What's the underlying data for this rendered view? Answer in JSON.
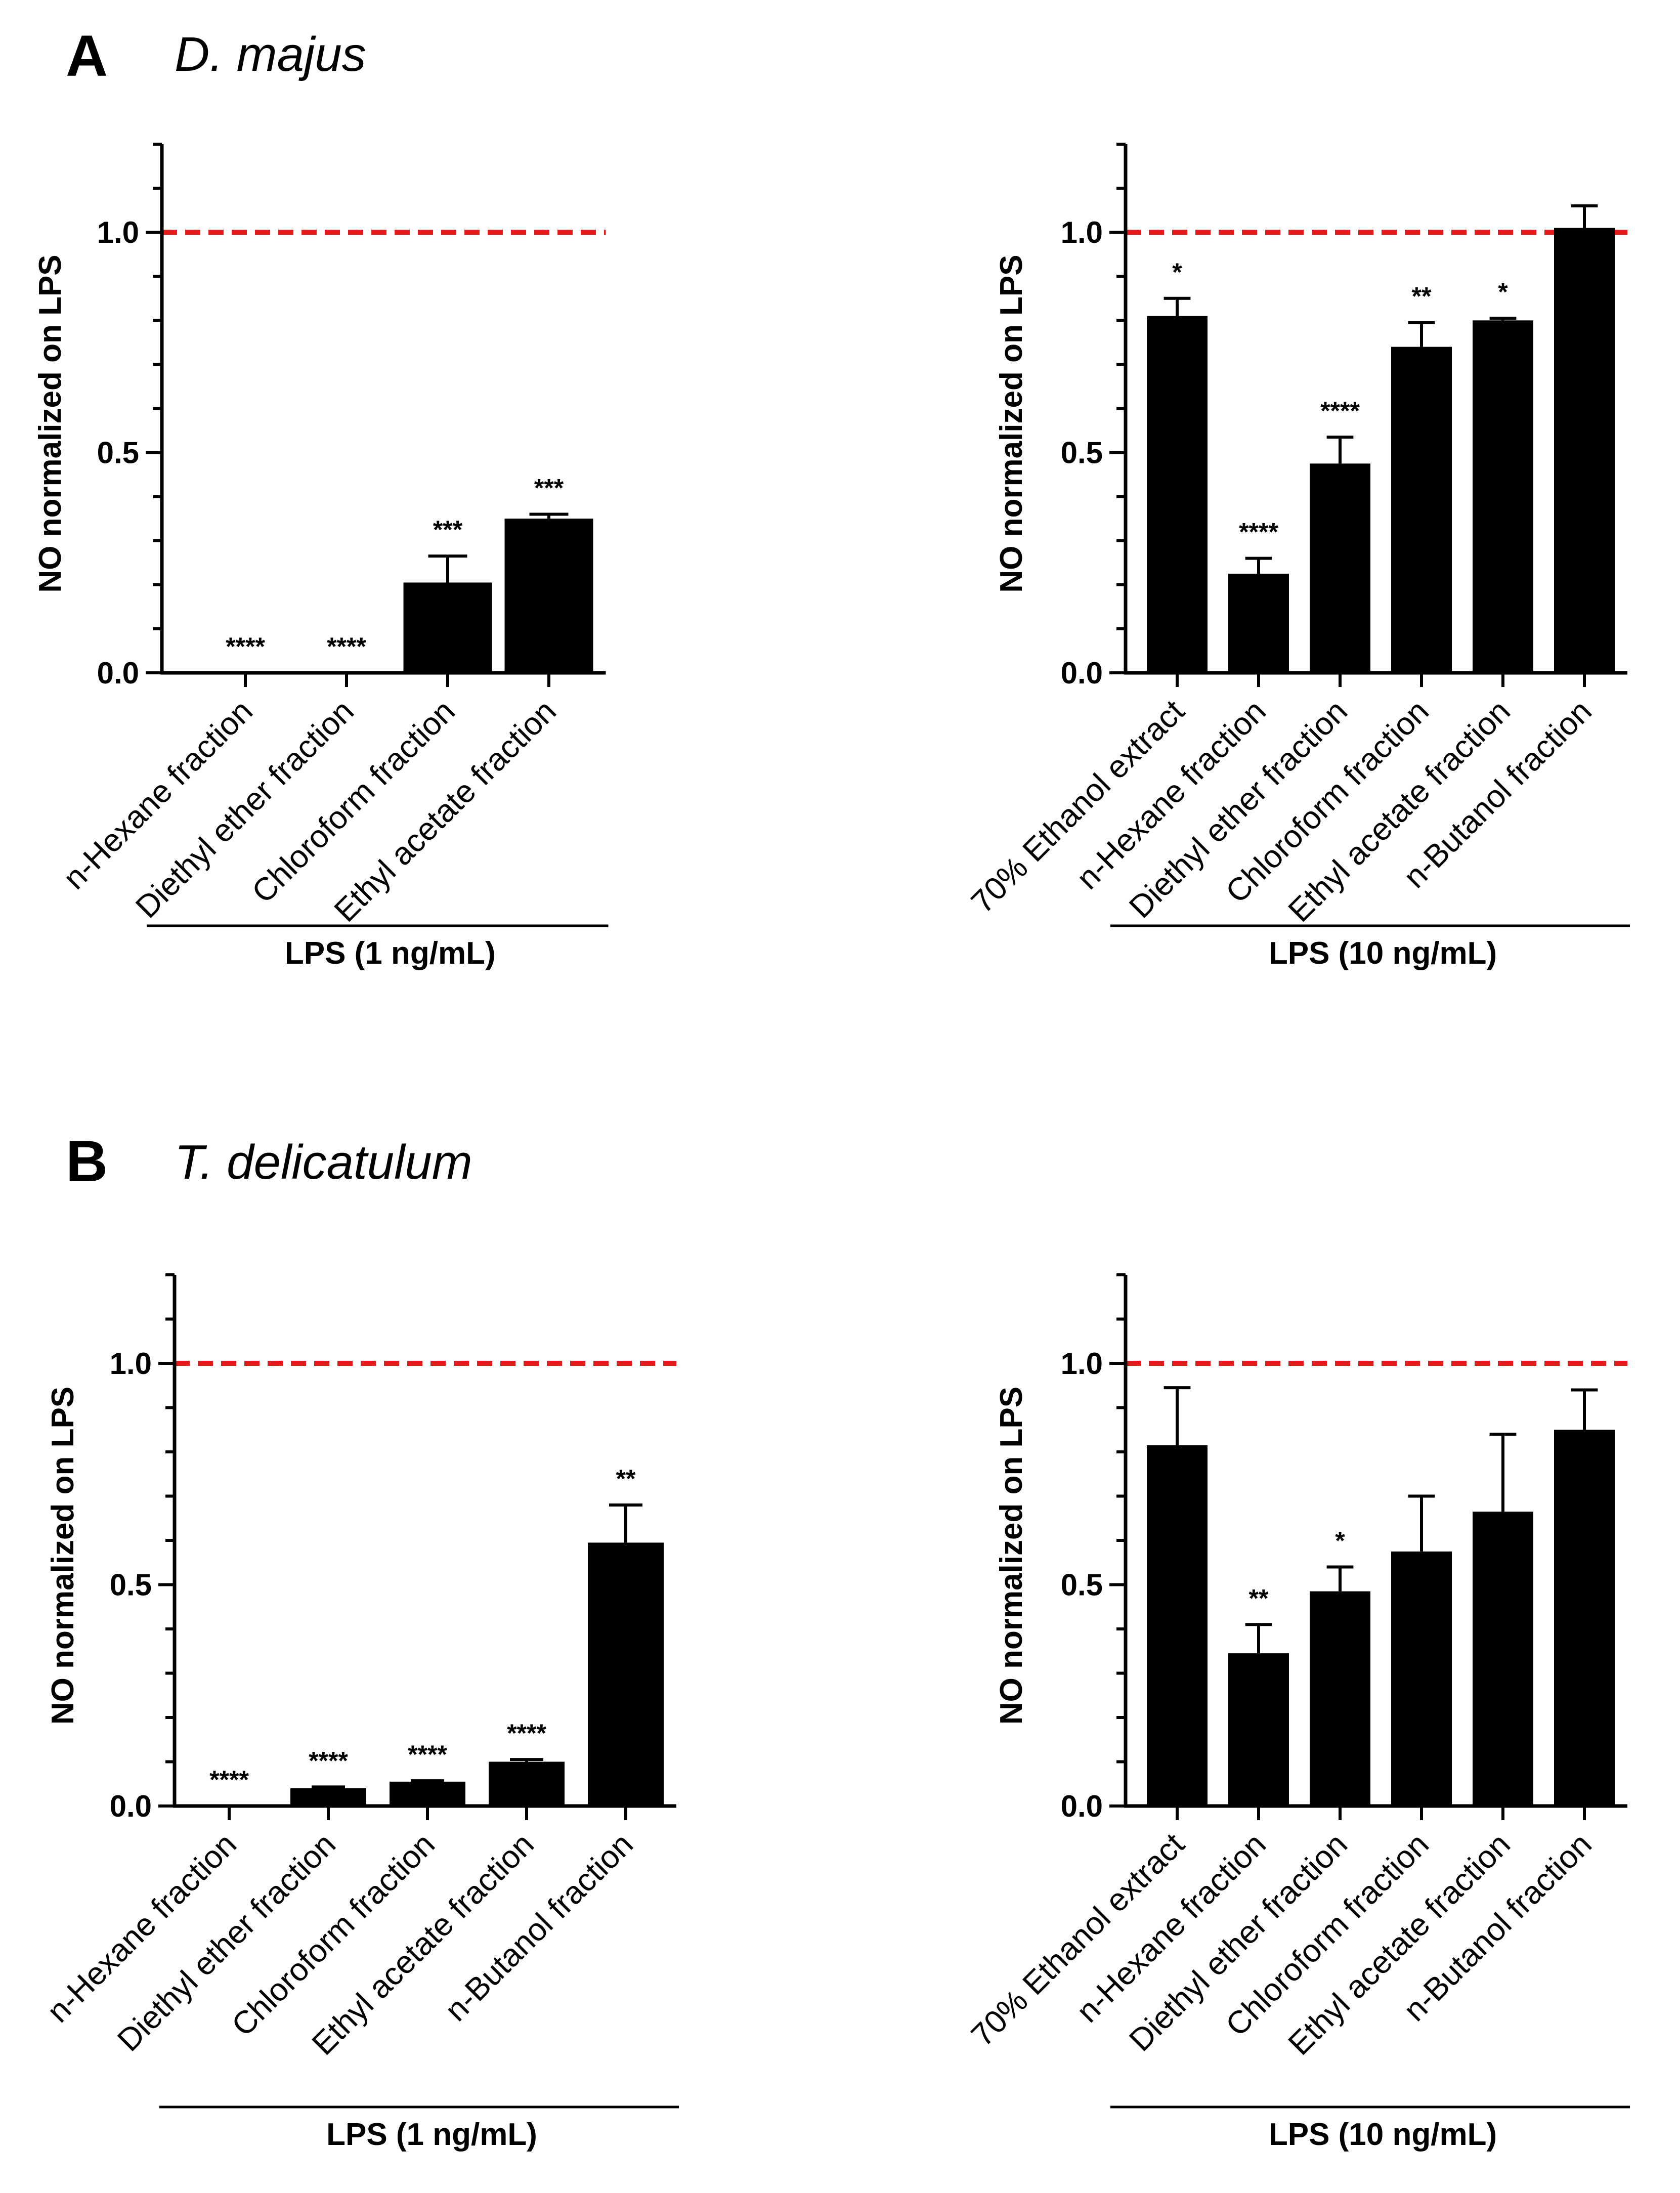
{
  "figure": {
    "panels": [
      {
        "letter": "A",
        "species": "D. majus"
      },
      {
        "letter": "B",
        "species": "T. delicatulum"
      }
    ],
    "colors": {
      "bar": "#000000",
      "reference_line": "#e41a1c",
      "axis": "#000000"
    }
  },
  "chart_data": [
    {
      "type": "bar",
      "panel": "A",
      "ylabel": "NO normalized on LPS",
      "ylim": [
        0,
        1.2
      ],
      "yticks": [
        "0.0",
        "0.5",
        "1.0"
      ],
      "reference_line": 1.0,
      "group_label": "LPS (1 ng/mL)",
      "categories": [
        "n-Hexane fraction",
        "Diethyl ether fraction",
        "Chloroform fraction",
        "Ethyl acetate fraction"
      ],
      "values": [
        0.0,
        0.0,
        0.205,
        0.35
      ],
      "errors": [
        0,
        0,
        0.06,
        0.01
      ],
      "significance": [
        "****",
        "****",
        "***",
        "***"
      ]
    },
    {
      "type": "bar",
      "panel": "A",
      "ylabel": "NO normalized on LPS",
      "ylim": [
        0,
        1.2
      ],
      "yticks": [
        "0.0",
        "0.5",
        "1.0"
      ],
      "reference_line": 1.0,
      "group_label": "LPS (10 ng/mL)",
      "categories": [
        "70% Ethanol extract",
        "n-Hexane fraction",
        "Diethyl ether fraction",
        "Chloroform fraction",
        "Ethyl acetate fraction",
        "n-Butanol fraction"
      ],
      "values": [
        0.81,
        0.225,
        0.475,
        0.74,
        0.8,
        1.01
      ],
      "errors": [
        0.04,
        0.035,
        0.06,
        0.055,
        0.005,
        0.05
      ],
      "significance": [
        "*",
        "****",
        "****",
        "**",
        "*",
        ""
      ]
    },
    {
      "type": "bar",
      "panel": "B",
      "ylabel": "NO normalized on LPS",
      "ylim": [
        0,
        1.2
      ],
      "yticks": [
        "0.0",
        "0.5",
        "1.0"
      ],
      "reference_line": 1.0,
      "group_label": "LPS (1 ng/mL)",
      "categories": [
        "n-Hexane fraction",
        "Diethyl ether fraction",
        "Chloroform fraction",
        "Ethyl acetate fraction",
        "n-Butanol fraction"
      ],
      "values": [
        0.0,
        0.04,
        0.055,
        0.1,
        0.595
      ],
      "errors": [
        0,
        0.003,
        0.002,
        0.005,
        0.085
      ],
      "significance": [
        "****",
        "****",
        "****",
        "****",
        "**"
      ]
    },
    {
      "type": "bar",
      "panel": "B",
      "ylabel": "NO normalized on LPS",
      "ylim": [
        0,
        1.2
      ],
      "yticks": [
        "0.0",
        "0.5",
        "1.0"
      ],
      "reference_line": 1.0,
      "group_label": "LPS (10 ng/mL)",
      "categories": [
        "70% Ethanol extract",
        "n-Hexane fraction",
        "Diethyl ether fraction",
        "Chloroform fraction",
        "Ethyl acetate fraction",
        "n-Butanol fraction"
      ],
      "values": [
        0.815,
        0.345,
        0.485,
        0.575,
        0.665,
        0.85
      ],
      "errors": [
        0.13,
        0.065,
        0.055,
        0.125,
        0.175,
        0.09
      ],
      "significance": [
        "",
        "**",
        "*",
        "",
        "",
        ""
      ]
    }
  ]
}
